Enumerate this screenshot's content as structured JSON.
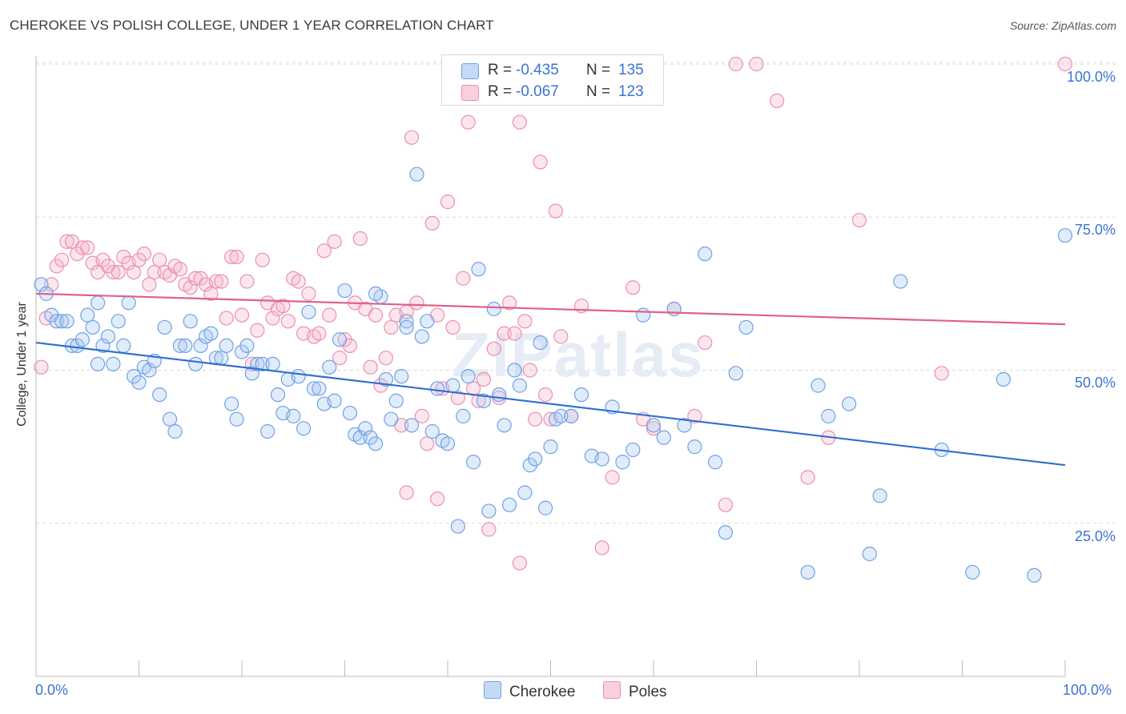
{
  "title": "CHEROKEE VS POLISH COLLEGE, UNDER 1 YEAR CORRELATION CHART",
  "source": "Source: ZipAtlas.com",
  "watermark": "ZIPatlas",
  "legend": {
    "r_label": "R =",
    "n_label": "N =",
    "rows": [
      {
        "name": "Cherokee",
        "r": "-0.435",
        "n": "135",
        "color": "#6fa1e6"
      },
      {
        "name": "Poles",
        "r": "-0.067",
        "n": "123",
        "color": "#ec8fae"
      }
    ]
  },
  "colors": {
    "blue_line": "#2f6fd1",
    "pink_line": "#e0608e",
    "tick_text": "#3b73d4"
  },
  "chart_data": {
    "type": "scatter",
    "title": "CHEROKEE VS POLISH COLLEGE, UNDER 1 YEAR CORRELATION CHART",
    "xlabel": "",
    "ylabel": "College, Under 1 year",
    "xlim": [
      0,
      100
    ],
    "ylim": [
      0,
      105
    ],
    "x_tick_labels": [
      "0.0%",
      "100.0%"
    ],
    "y_tick_labels": [
      "25.0%",
      "50.0%",
      "75.0%",
      "100.0%"
    ],
    "y_ticks": [
      25,
      50,
      75,
      100
    ],
    "grid": true,
    "legend_position": "top-center",
    "series": [
      {
        "name": "Cherokee",
        "color": "#6fa1e6",
        "trend": {
          "x": [
            0,
            100
          ],
          "y": [
            54.5,
            34.5
          ]
        },
        "points": [
          [
            0.5,
            64
          ],
          [
            1,
            62.5
          ],
          [
            1.5,
            59
          ],
          [
            2,
            58
          ],
          [
            2.5,
            58
          ],
          [
            3,
            58
          ],
          [
            3.5,
            54
          ],
          [
            4,
            54
          ],
          [
            4.5,
            55
          ],
          [
            5,
            59
          ],
          [
            5.5,
            57
          ],
          [
            6,
            61
          ],
          [
            6.5,
            54
          ],
          [
            7,
            55.5
          ],
          [
            7.5,
            51
          ],
          [
            8,
            58
          ],
          [
            8.5,
            54
          ],
          [
            9,
            61
          ],
          [
            9.5,
            49
          ],
          [
            10,
            48
          ],
          [
            10.5,
            50.5
          ],
          [
            11,
            50
          ],
          [
            11.5,
            51.5
          ],
          [
            12,
            46
          ],
          [
            12.5,
            57
          ],
          [
            13,
            42
          ],
          [
            13.5,
            40
          ],
          [
            14,
            54
          ],
          [
            14.5,
            54
          ],
          [
            15,
            58
          ],
          [
            15.5,
            51
          ],
          [
            16,
            54
          ],
          [
            16.5,
            55.5
          ],
          [
            17,
            56
          ],
          [
            17.5,
            52
          ],
          [
            18,
            52
          ],
          [
            18.5,
            54
          ],
          [
            19,
            44.5
          ],
          [
            19.5,
            42
          ],
          [
            20,
            53
          ],
          [
            20.5,
            54
          ],
          [
            21,
            49.5
          ],
          [
            21.5,
            51
          ],
          [
            22,
            51
          ],
          [
            22.5,
            40
          ],
          [
            23,
            51
          ],
          [
            23.5,
            46
          ],
          [
            24,
            43
          ],
          [
            24.5,
            48.5
          ],
          [
            25,
            42.5
          ],
          [
            25.5,
            49
          ],
          [
            26,
            40.5
          ],
          [
            26.5,
            59.5
          ],
          [
            27,
            47
          ],
          [
            27.5,
            47
          ],
          [
            28,
            44.5
          ],
          [
            28.5,
            50.5
          ],
          [
            29,
            45
          ],
          [
            29.5,
            55
          ],
          [
            30,
            63
          ],
          [
            30.5,
            43
          ],
          [
            31,
            39.5
          ],
          [
            31.5,
            39
          ],
          [
            32,
            40.5
          ],
          [
            32.5,
            39
          ],
          [
            33,
            38
          ],
          [
            33.5,
            62
          ],
          [
            34,
            48.5
          ],
          [
            34.5,
            42
          ],
          [
            35,
            45
          ],
          [
            35.5,
            49
          ],
          [
            36,
            58
          ],
          [
            36.5,
            41
          ],
          [
            37,
            82
          ],
          [
            37.5,
            55.5
          ],
          [
            38,
            58
          ],
          [
            38.5,
            40
          ],
          [
            39,
            47
          ],
          [
            39.5,
            38.5
          ],
          [
            40,
            38
          ],
          [
            40.5,
            47.5
          ],
          [
            41,
            24.5
          ],
          [
            41.5,
            42.5
          ],
          [
            42,
            49
          ],
          [
            42.5,
            35
          ],
          [
            43,
            66.5
          ],
          [
            43.5,
            45
          ],
          [
            44,
            27
          ],
          [
            44.5,
            60
          ],
          [
            45,
            46
          ],
          [
            45.5,
            41
          ],
          [
            46,
            28
          ],
          [
            46.5,
            50
          ],
          [
            47,
            47.5
          ],
          [
            47.5,
            30
          ],
          [
            48,
            34.5
          ],
          [
            48.5,
            35.5
          ],
          [
            49,
            54.5
          ],
          [
            49.5,
            27.5
          ],
          [
            50,
            37.5
          ],
          [
            50.5,
            42
          ],
          [
            51,
            42.5
          ],
          [
            52,
            42.5
          ],
          [
            53,
            46
          ],
          [
            54,
            36
          ],
          [
            55,
            35.5
          ],
          [
            56,
            44
          ],
          [
            57,
            35
          ],
          [
            58,
            37
          ],
          [
            59,
            59
          ],
          [
            60,
            41
          ],
          [
            61,
            39
          ],
          [
            62,
            60
          ],
          [
            63,
            41
          ],
          [
            64,
            37.5
          ],
          [
            65,
            69
          ],
          [
            66,
            35
          ],
          [
            67,
            23.5
          ],
          [
            68,
            49.5
          ],
          [
            69,
            57
          ],
          [
            75,
            17
          ],
          [
            76,
            47.5
          ],
          [
            77,
            42.5
          ],
          [
            79,
            44.5
          ],
          [
            81,
            20
          ],
          [
            82,
            29.5
          ],
          [
            84,
            64.5
          ],
          [
            88,
            37
          ],
          [
            91,
            17
          ],
          [
            94,
            48.5
          ],
          [
            97,
            16.5
          ],
          [
            100,
            72
          ],
          [
            33,
            62.5
          ],
          [
            36,
            57
          ],
          [
            6,
            51
          ]
        ]
      },
      {
        "name": "Poles",
        "color": "#ec8fae",
        "trend": {
          "x": [
            0,
            100
          ],
          "y": [
            62.5,
            57.5
          ]
        },
        "points": [
          [
            0.5,
            50.5
          ],
          [
            1,
            58.5
          ],
          [
            1.5,
            64
          ],
          [
            2,
            67
          ],
          [
            2.5,
            68
          ],
          [
            3,
            71
          ],
          [
            3.5,
            71
          ],
          [
            4,
            69
          ],
          [
            4.5,
            70
          ],
          [
            5,
            70
          ],
          [
            5.5,
            67.5
          ],
          [
            6,
            66
          ],
          [
            6.5,
            68
          ],
          [
            7,
            67
          ],
          [
            7.5,
            66
          ],
          [
            8,
            66
          ],
          [
            8.5,
            68.5
          ],
          [
            9,
            67.5
          ],
          [
            9.5,
            66
          ],
          [
            10,
            68
          ],
          [
            10.5,
            69
          ],
          [
            11,
            64
          ],
          [
            11.5,
            66
          ],
          [
            12,
            68
          ],
          [
            12.5,
            66
          ],
          [
            13,
            65.5
          ],
          [
            13.5,
            67
          ],
          [
            14,
            66.5
          ],
          [
            14.5,
            64
          ],
          [
            15,
            63.5
          ],
          [
            15.5,
            65
          ],
          [
            16,
            65
          ],
          [
            16.5,
            64
          ],
          [
            17,
            62.5
          ],
          [
            17.5,
            64.5
          ],
          [
            18,
            64.5
          ],
          [
            18.5,
            58.5
          ],
          [
            19,
            68.5
          ],
          [
            19.5,
            68.5
          ],
          [
            20,
            59
          ],
          [
            20.5,
            64.5
          ],
          [
            21,
            51
          ],
          [
            21.5,
            56.5
          ],
          [
            22,
            68
          ],
          [
            22.5,
            61
          ],
          [
            23,
            58.5
          ],
          [
            23.5,
            60
          ],
          [
            24,
            60.5
          ],
          [
            24.5,
            58
          ],
          [
            25,
            65
          ],
          [
            25.5,
            64.5
          ],
          [
            26,
            56
          ],
          [
            26.5,
            62.5
          ],
          [
            27,
            55.5
          ],
          [
            27.5,
            56
          ],
          [
            28,
            69.5
          ],
          [
            28.5,
            59
          ],
          [
            29,
            71
          ],
          [
            29.5,
            52
          ],
          [
            30,
            55
          ],
          [
            30.5,
            54
          ],
          [
            31,
            61
          ],
          [
            31.5,
            71.5
          ],
          [
            32,
            60
          ],
          [
            32.5,
            50.5
          ],
          [
            33,
            59
          ],
          [
            33.5,
            47.5
          ],
          [
            34,
            52
          ],
          [
            34.5,
            57
          ],
          [
            35,
            59
          ],
          [
            35.5,
            41
          ],
          [
            36,
            59.5
          ],
          [
            36.5,
            88
          ],
          [
            37,
            61
          ],
          [
            37.5,
            42.5
          ],
          [
            38,
            38
          ],
          [
            38.5,
            74
          ],
          [
            39,
            59
          ],
          [
            39.5,
            47
          ],
          [
            40,
            77.5
          ],
          [
            40.5,
            57
          ],
          [
            41,
            45.5
          ],
          [
            41.5,
            65
          ],
          [
            42,
            90.5
          ],
          [
            42.5,
            47
          ],
          [
            43,
            45
          ],
          [
            43.5,
            48.5
          ],
          [
            44,
            24
          ],
          [
            44.5,
            53.5
          ],
          [
            45,
            45.5
          ],
          [
            45.5,
            56
          ],
          [
            46,
            61
          ],
          [
            46.5,
            56
          ],
          [
            47,
            90.5
          ],
          [
            47.5,
            58
          ],
          [
            48,
            50
          ],
          [
            48.5,
            42
          ],
          [
            49,
            84
          ],
          [
            49.5,
            46
          ],
          [
            50,
            42
          ],
          [
            50.5,
            76
          ],
          [
            51,
            55.5
          ],
          [
            52,
            42.5
          ],
          [
            53,
            60.5
          ],
          [
            55,
            21
          ],
          [
            56,
            32.5
          ],
          [
            57,
            100
          ],
          [
            58,
            63.5
          ],
          [
            59,
            42
          ],
          [
            60,
            40.5
          ],
          [
            62,
            60
          ],
          [
            64,
            42.5
          ],
          [
            65,
            54.5
          ],
          [
            67,
            28
          ],
          [
            68,
            100
          ],
          [
            70,
            100
          ],
          [
            72,
            94
          ],
          [
            75,
            32.5
          ],
          [
            77,
            39
          ],
          [
            80,
            74.5
          ],
          [
            88,
            49.5
          ],
          [
            100,
            100
          ],
          [
            36,
            30
          ],
          [
            39,
            29
          ],
          [
            47,
            18.5
          ]
        ]
      }
    ]
  }
}
